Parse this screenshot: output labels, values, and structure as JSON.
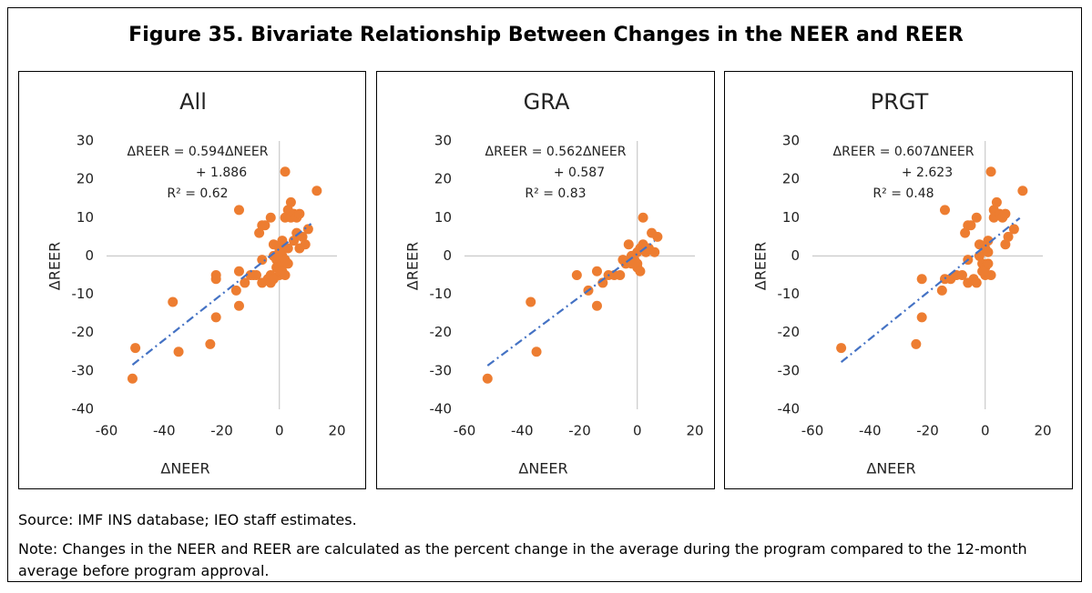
{
  "title": "Figure 35. Bivariate Relationship Between Changes in the NEER and REER",
  "source": "Source: IMF INS database; IEO staff estimates.",
  "note": "Note: Changes in the NEER and REER are calculated as the percent change in the average during the program compared to the 12-month average before program approval.",
  "chart_data": [
    {
      "type": "scatter",
      "title": "All",
      "xlabel": "ΔNEER",
      "ylabel": "ΔREER",
      "xlim": [
        -60,
        20
      ],
      "ylim": [
        -40,
        30
      ],
      "xticks": [
        -60,
        -40,
        -20,
        0,
        20
      ],
      "yticks": [
        -40,
        -30,
        -20,
        -10,
        0,
        10,
        20,
        30
      ],
      "x": [
        -51,
        -50,
        -37,
        -35,
        -24,
        -22,
        -22,
        -22,
        -14,
        -14,
        -14,
        -15,
        -12,
        -10,
        -9,
        -8,
        -7,
        -6,
        -5,
        -6,
        -6,
        -4,
        -3,
        -3,
        -2,
        -2,
        -1,
        -1,
        0,
        0,
        0,
        1,
        1,
        1,
        1,
        2,
        2,
        2,
        2,
        3,
        3,
        3,
        4,
        4,
        5,
        5,
        6,
        6,
        7,
        7,
        8,
        9,
        10,
        13,
        -3,
        -2,
        0,
        1
      ],
      "series": [
        {
          "color": "#ed7d31",
          "values": [
            -32,
            -24,
            -12,
            -25,
            -23,
            -16,
            -5,
            -6,
            12,
            -4,
            -13,
            -9,
            -7,
            -5,
            -5,
            -5,
            6,
            8,
            8,
            -7,
            -1,
            -6,
            -7,
            10,
            3,
            0,
            -1,
            -3,
            2,
            -3,
            -5,
            -2,
            3,
            0,
            -4,
            22,
            10,
            -5,
            -1,
            12,
            2,
            -2,
            14,
            10,
            11,
            4,
            10,
            6,
            11,
            2,
            5,
            3,
            7,
            17,
            -5,
            -6,
            1,
            4
          ]
        }
      ],
      "trendline": {
        "color": "#4472c4",
        "x": [
          -51,
          11
        ],
        "values": [
          -28.4,
          8.4
        ]
      },
      "equation": [
        "ΔREER = 0.594ΔNEER",
        "+ 1.886",
        "R² = 0.62"
      ]
    },
    {
      "type": "scatter",
      "title": "GRA",
      "xlabel": "ΔNEER",
      "ylabel": "ΔREER",
      "xlim": [
        -60,
        20
      ],
      "ylim": [
        -40,
        30
      ],
      "xticks": [
        -60,
        -40,
        -20,
        0,
        20
      ],
      "yticks": [
        -40,
        -30,
        -20,
        -10,
        0,
        10,
        20,
        30
      ],
      "x": [
        -52,
        -37,
        -35,
        -21,
        -17,
        -14,
        -14,
        -12,
        -10,
        -8,
        -6,
        -5,
        -4,
        -3,
        -2,
        -1,
        0,
        0,
        1,
        1,
        2,
        2,
        3,
        4,
        5,
        6,
        7,
        -2,
        0
      ],
      "series": [
        {
          "color": "#ed7d31",
          "values": [
            -32,
            -12,
            -25,
            -5,
            -9,
            -4,
            -13,
            -7,
            -5,
            -5,
            -5,
            -1,
            -2,
            3,
            0,
            -1,
            -2,
            -3,
            2,
            -4,
            10,
            3,
            1,
            2,
            6,
            1,
            5,
            -2,
            1
          ]
        }
      ],
      "trendline": {
        "color": "#4472c4",
        "x": [
          -52,
          6
        ],
        "values": [
          -28.6,
          3.9
        ]
      },
      "equation": [
        "ΔREER = 0.562ΔNEER",
        "+ 0.587",
        "R² = 0.83"
      ]
    },
    {
      "type": "scatter",
      "title": "PRGT",
      "xlabel": "ΔNEER",
      "ylabel": "ΔREER",
      "xlim": [
        -60,
        20
      ],
      "ylim": [
        -40,
        30
      ],
      "xticks": [
        -60,
        -40,
        -20,
        0,
        20
      ],
      "yticks": [
        -40,
        -30,
        -20,
        -10,
        0,
        10,
        20,
        30
      ],
      "x": [
        -50,
        -24,
        -22,
        -22,
        -14,
        -15,
        -14,
        -12,
        -10,
        -8,
        -7,
        -6,
        -5,
        -6,
        -6,
        -4,
        -3,
        -3,
        -2,
        -2,
        -1,
        0,
        0,
        0,
        1,
        1,
        2,
        2,
        3,
        3,
        4,
        5,
        6,
        7,
        7,
        8,
        10,
        13,
        1,
        -1
      ],
      "series": [
        {
          "color": "#ed7d31",
          "values": [
            -24,
            -23,
            -16,
            -6,
            12,
            -9,
            -6,
            -6,
            -5,
            -5,
            6,
            8,
            8,
            -1,
            -7,
            -6,
            -7,
            10,
            3,
            0,
            -2,
            2,
            -3,
            -5,
            -2,
            1,
            22,
            -5,
            12,
            10,
            14,
            11,
            10,
            11,
            3,
            5,
            7,
            17,
            4,
            -4
          ]
        }
      ],
      "trendline": {
        "color": "#4472c4",
        "x": [
          -50,
          12
        ],
        "values": [
          -27.7,
          9.9
        ]
      },
      "equation": [
        "ΔREER = 0.607ΔNEER",
        "+ 2.623",
        "R² = 0.48"
      ]
    }
  ]
}
